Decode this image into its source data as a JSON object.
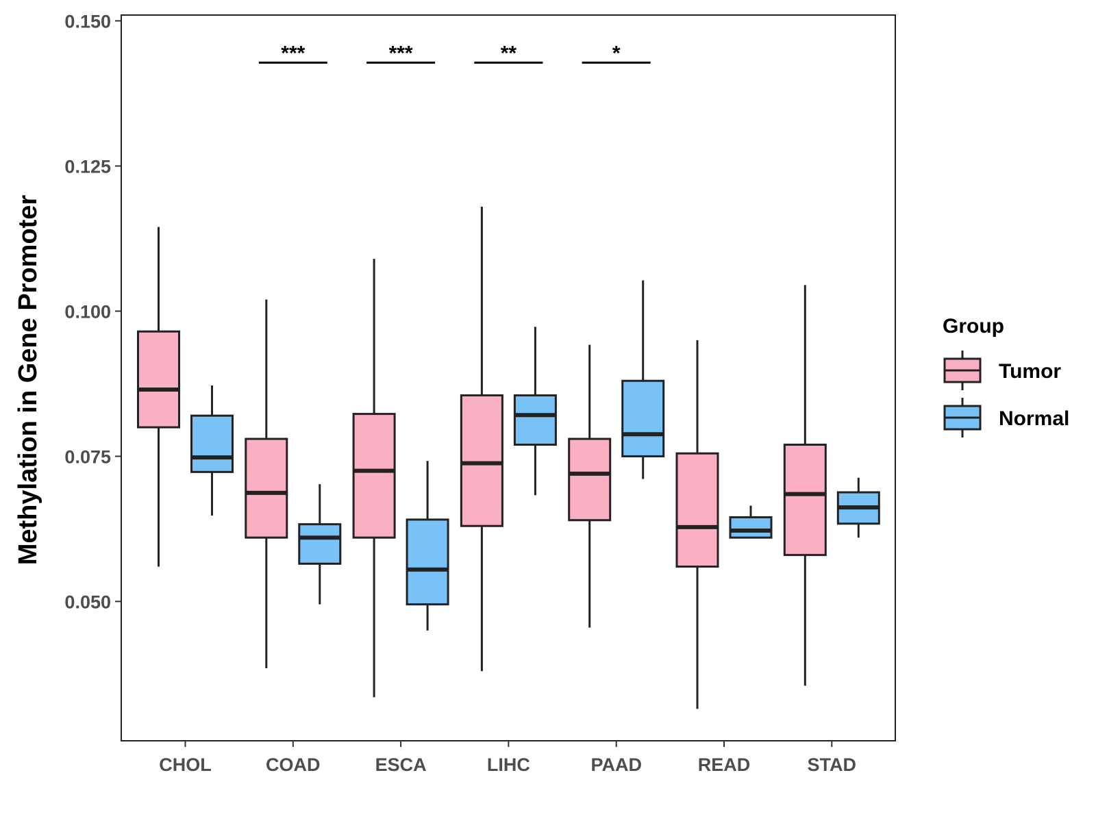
{
  "chart_data": {
    "type": "boxplot",
    "title": "",
    "xlabel": "",
    "ylabel": "Methylation in Gene Promoter",
    "ylim": [
      0.026,
      0.151
    ],
    "yticks": [
      "0.050",
      "0.075",
      "0.100",
      "0.125",
      "0.150"
    ],
    "categories": [
      "CHOL",
      "COAD",
      "ESCA",
      "LIHC",
      "PAAD",
      "READ",
      "STAD"
    ],
    "legend_title": "Group",
    "legend_position": "right",
    "series": [
      {
        "name": "Tumor",
        "color": "#FAAFC3",
        "boxes": [
          {
            "min": 0.056,
            "q1": 0.08,
            "median": 0.0865,
            "q3": 0.0965,
            "max": 0.1145
          },
          {
            "min": 0.0385,
            "q1": 0.061,
            "median": 0.0687,
            "q3": 0.078,
            "max": 0.102
          },
          {
            "min": 0.0335,
            "q1": 0.061,
            "median": 0.0725,
            "q3": 0.0823,
            "max": 0.109
          },
          {
            "min": 0.038,
            "q1": 0.063,
            "median": 0.0738,
            "q3": 0.0855,
            "max": 0.118
          },
          {
            "min": 0.0455,
            "q1": 0.064,
            "median": 0.072,
            "q3": 0.078,
            "max": 0.0942
          },
          {
            "min": 0.0315,
            "q1": 0.056,
            "median": 0.0628,
            "q3": 0.0755,
            "max": 0.095
          },
          {
            "min": 0.0355,
            "q1": 0.058,
            "median": 0.0685,
            "q3": 0.077,
            "max": 0.1045
          }
        ]
      },
      {
        "name": "Normal",
        "color": "#78C2F8",
        "boxes": [
          {
            "min": 0.0648,
            "q1": 0.0723,
            "median": 0.0748,
            "q3": 0.082,
            "max": 0.0872
          },
          {
            "min": 0.0495,
            "q1": 0.0565,
            "median": 0.061,
            "q3": 0.0633,
            "max": 0.0702
          },
          {
            "min": 0.045,
            "q1": 0.0495,
            "median": 0.0555,
            "q3": 0.0641,
            "max": 0.0742
          },
          {
            "min": 0.0683,
            "q1": 0.077,
            "median": 0.0821,
            "q3": 0.0855,
            "max": 0.0973
          },
          {
            "min": 0.0711,
            "q1": 0.075,
            "median": 0.0788,
            "q3": 0.088,
            "max": 0.1053
          },
          {
            "min": 0.061,
            "q1": 0.061,
            "median": 0.0622,
            "q3": 0.0645,
            "max": 0.0665
          },
          {
            "min": 0.061,
            "q1": 0.0634,
            "median": 0.0662,
            "q3": 0.0688,
            "max": 0.0713
          }
        ]
      }
    ],
    "significance": [
      {
        "category": "COAD",
        "label": "***",
        "y": 0.1428
      },
      {
        "category": "ESCA",
        "label": "***",
        "y": 0.1428
      },
      {
        "category": "LIHC",
        "label": "**",
        "y": 0.1428
      },
      {
        "category": "PAAD",
        "label": "*",
        "y": 0.1428
      }
    ]
  }
}
